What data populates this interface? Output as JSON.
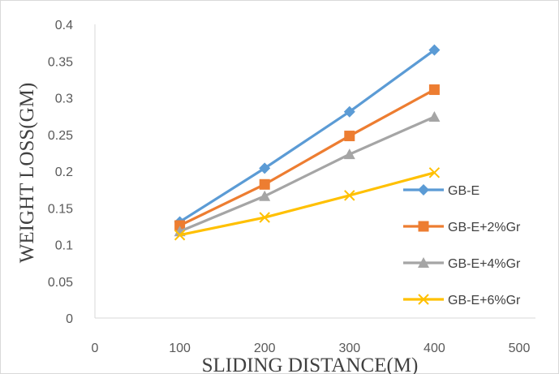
{
  "chart_data": {
    "type": "line",
    "title": "",
    "xlabel": "SLIDING DISTANCE(M)",
    "ylabel": "WEIGHT LOSS(GM)",
    "xlim": [
      0,
      500
    ],
    "ylim": [
      0,
      0.4
    ],
    "x_ticks": [
      "0",
      "100",
      "200",
      "300",
      "400",
      "500"
    ],
    "y_ticks": [
      "0",
      "0.05",
      "0.1",
      "0.15",
      "0.2",
      "0.25",
      "0.3",
      "0.35",
      "0.4"
    ],
    "x": [
      100,
      200,
      300,
      400
    ],
    "grid": false,
    "legend_position": "right",
    "series": [
      {
        "name": "GB-E",
        "color": "#5b9bd5",
        "marker": "diamond",
        "values": [
          0.131,
          0.204,
          0.281,
          0.365
        ]
      },
      {
        "name": "GB-E+2%Gr",
        "color": "#ed7d31",
        "marker": "square",
        "values": [
          0.126,
          0.182,
          0.248,
          0.311
        ]
      },
      {
        "name": "GB-E+4%Gr",
        "color": "#a5a5a5",
        "marker": "triangle",
        "values": [
          0.118,
          0.166,
          0.223,
          0.274
        ]
      },
      {
        "name": "GB-E+6%Gr",
        "color": "#ffc000",
        "marker": "x",
        "values": [
          0.113,
          0.137,
          0.167,
          0.198
        ]
      }
    ]
  }
}
